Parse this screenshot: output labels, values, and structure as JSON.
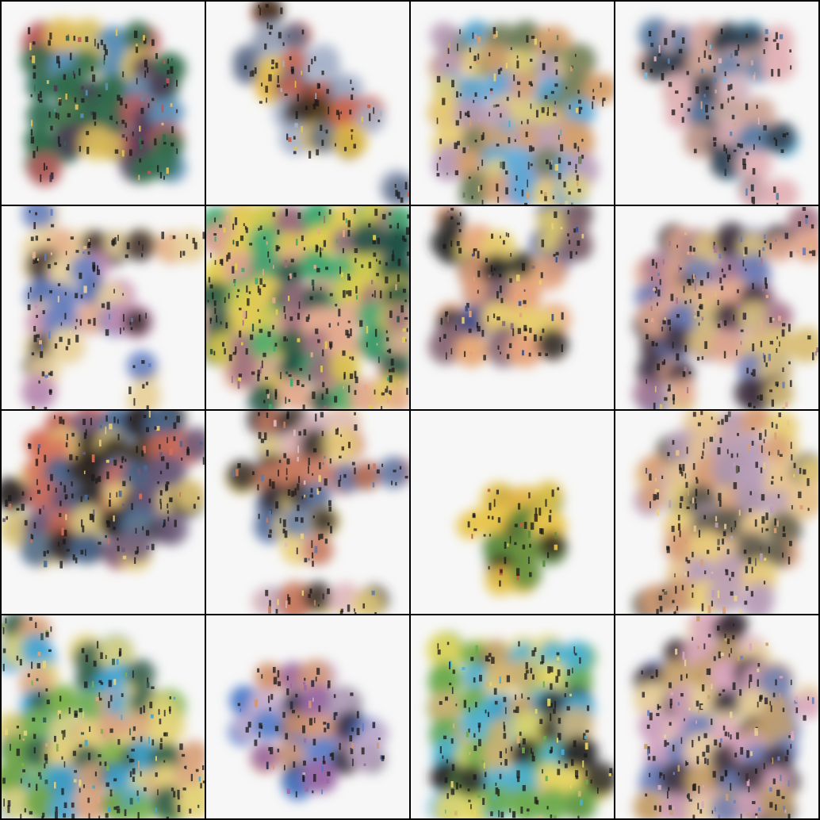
{
  "grid": {
    "rows": 4,
    "cols": 4,
    "border_color": "#000000",
    "background_color": "#f7f7f7"
  },
  "tiles": [
    {
      "shape": "square-with-notch-bottom",
      "palette": [
        "#2f6b4a",
        "#b8595a",
        "#e3c35a",
        "#5a8fb5",
        "#4a3a55"
      ]
    },
    {
      "shape": "diagonal-blob-top",
      "palette": [
        "#3a2a1f",
        "#e8c24a",
        "#c95f45",
        "#5d6b86",
        "#a7b3c9"
      ]
    },
    {
      "shape": "large-block-right-protrusion",
      "palette": [
        "#51a7d8",
        "#e8cf74",
        "#d4a06d",
        "#6c7c5a",
        "#b89bb7"
      ]
    },
    {
      "shape": "t-shape-top",
      "palette": [
        "#6fc1e8",
        "#e3b4b8",
        "#5b7ea5",
        "#2d3a48",
        "#cfa596"
      ]
    },
    {
      "shape": "ladder-blob",
      "palette": [
        "#e5b48d",
        "#5f7cc2",
        "#c58fb0",
        "#3c2d2e",
        "#e9d29f"
      ]
    },
    {
      "shape": "large-square",
      "palette": [
        "#3fa870",
        "#e2ce4c",
        "#e3aa8f",
        "#1f5144",
        "#9a6b7b"
      ]
    },
    {
      "shape": "x-shape",
      "palette": [
        "#3c4e89",
        "#e6a37b",
        "#8a6a75",
        "#e7d16f",
        "#2a2a2a"
      ]
    },
    {
      "shape": "x-large",
      "palette": [
        "#e3a98f",
        "#6c7bb5",
        "#d9c07a",
        "#a5778f",
        "#3f3140"
      ]
    },
    {
      "shape": "sparse-lattice",
      "palette": [
        "#e8cc7a",
        "#6b5a7a",
        "#d56f58",
        "#4a6a90",
        "#2b2420"
      ]
    },
    {
      "shape": "cross",
      "palette": [
        "#ead181",
        "#c87a5e",
        "#5f79a8",
        "#342c2b",
        "#e0bcc1"
      ]
    },
    {
      "shape": "small-blob-center",
      "palette": [
        "#e7c44a",
        "#5a8a3c",
        "#c65c3e",
        "#3b2b1d"
      ]
    },
    {
      "shape": "cross-large",
      "palette": [
        "#ead07c",
        "#d79e75",
        "#b99fb9",
        "#5f5a4c",
        "#e6c38f"
      ]
    },
    {
      "shape": "triangle-blob",
      "palette": [
        "#3fa6d6",
        "#e4d47a",
        "#7ab04a",
        "#2e5a4c",
        "#d9a57f"
      ]
    },
    {
      "shape": "oval-diagonal",
      "palette": [
        "#4e7cc9",
        "#9a6aa6",
        "#d49673",
        "#2c2e45",
        "#c8b0cc"
      ]
    },
    {
      "shape": "block-lower",
      "palette": [
        "#45b0d8",
        "#e8d760",
        "#6caa4e",
        "#d4b276",
        "#2d2b2a"
      ]
    },
    {
      "shape": "tall-blob",
      "palette": [
        "#d9a7c0",
        "#c4a06b",
        "#6f7fb7",
        "#e8d09e",
        "#3b2f38"
      ]
    }
  ]
}
